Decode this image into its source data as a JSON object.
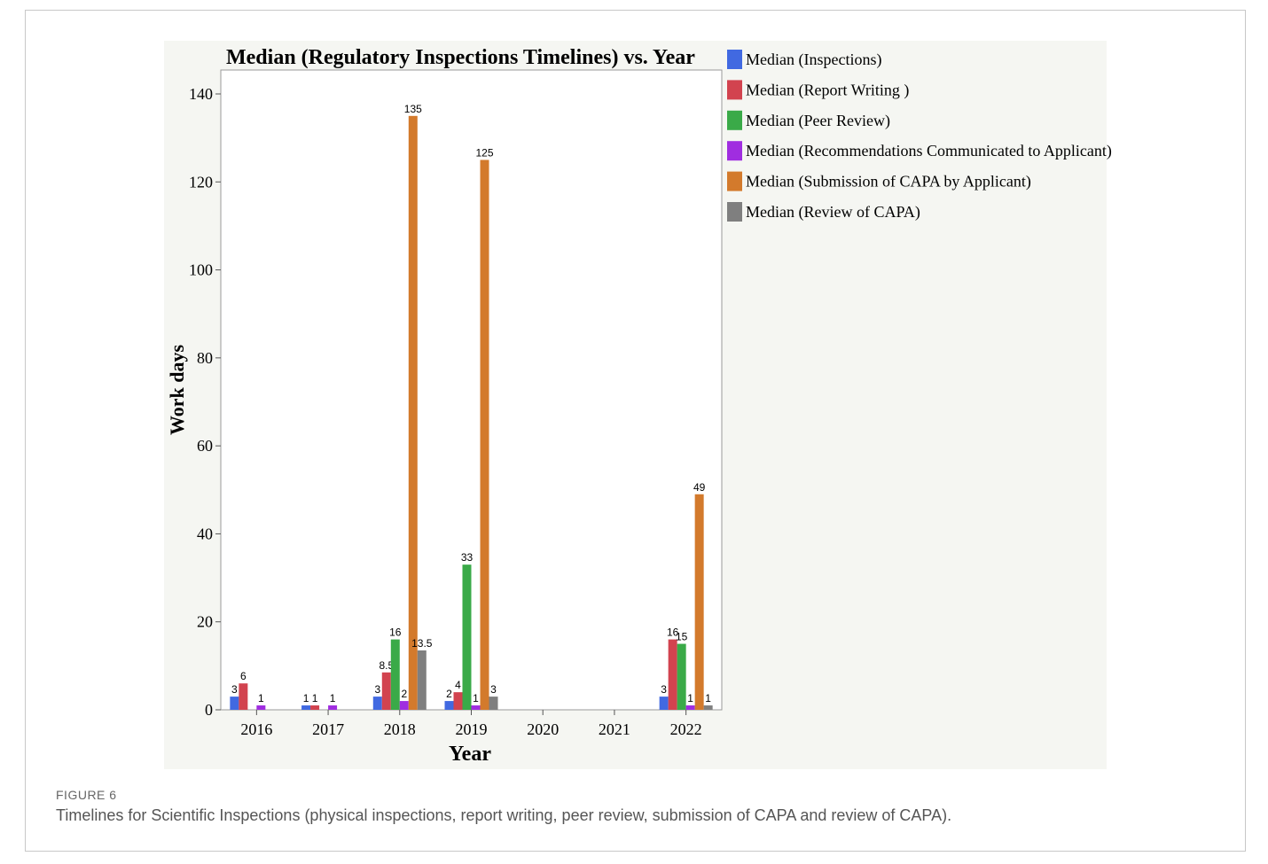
{
  "figure": {
    "label": "FIGURE 6",
    "caption": "Timelines for Scientific Inspections (physical inspections, report writing, peer review, submission of CAPA and review of CAPA)."
  },
  "chart_data": {
    "type": "bar",
    "title": "Median (Regulatory Inspections Timelines) vs. Year",
    "xlabel": "Year",
    "ylabel": "Work days",
    "ylim": [
      0,
      140
    ],
    "yticks": [
      0,
      20,
      40,
      60,
      80,
      100,
      120,
      140
    ],
    "grid": false,
    "legend_position": "right",
    "categories": [
      "2016",
      "2017",
      "2018",
      "2019",
      "2020",
      "2021",
      "2022"
    ],
    "series": [
      {
        "name": "Median (Inspections)",
        "color": "#4169e1",
        "values": [
          3,
          1,
          3,
          2,
          null,
          null,
          3
        ]
      },
      {
        "name": "Median (Report Writing )",
        "color": "#d2434f",
        "values": [
          6,
          1,
          8.5,
          4,
          null,
          null,
          16
        ]
      },
      {
        "name": "Median (Peer Review)",
        "color": "#3aaa48",
        "values": [
          null,
          null,
          16,
          33,
          null,
          null,
          15
        ]
      },
      {
        "name": "Median (Recommendations Communicated to Applicant)",
        "color": "#a02de0",
        "values": [
          1,
          1,
          2,
          1,
          null,
          null,
          1
        ]
      },
      {
        "name": "Median (Submission of CAPA by Applicant)",
        "color": "#d37a2c",
        "values": [
          null,
          null,
          135,
          125,
          null,
          null,
          49
        ]
      },
      {
        "name": "Median (Review of CAPA)",
        "color": "#7f7f7f",
        "values": [
          null,
          null,
          13.5,
          3,
          null,
          null,
          1
        ]
      }
    ]
  }
}
